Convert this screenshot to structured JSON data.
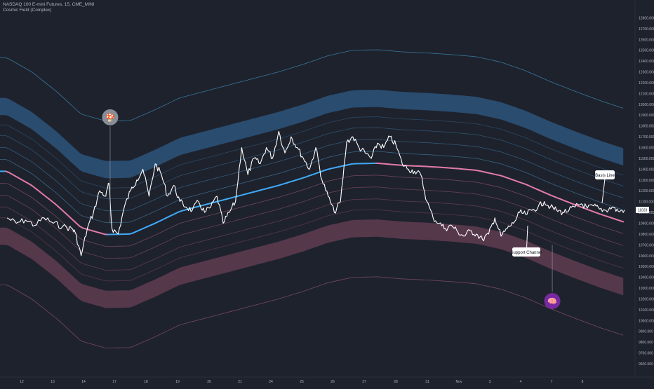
{
  "header": {
    "symbol": "NASDAQ 100 E-mini Futures, 15, CME_MINI",
    "indicator": "Cosmic Field (Complex)"
  },
  "callouts": {
    "basis": "Basis Line",
    "support": "Support Channel"
  },
  "colors": {
    "background": "#1e222d",
    "blue_band": "#2a4f73",
    "pink_band": "#5a3a4d",
    "basis_blue": "#3fa9f5",
    "basis_pink": "#e07aa8",
    "price": "#ffffff"
  },
  "chart_data": {
    "type": "line",
    "title": "",
    "xlabel": "",
    "ylabel": "",
    "y_axis_position": "right",
    "grid": false,
    "ylim": [
      9570,
      12900
    ],
    "y_ticks": [
      12800,
      12700,
      12600,
      12500,
      12400,
      12300,
      12200,
      12100,
      12000,
      11900,
      11800,
      11700,
      11600,
      11500,
      11400,
      11300,
      11200,
      11100,
      11000,
      10900,
      10800,
      10700,
      10600,
      10500,
      10400,
      10300,
      10200,
      10100,
      10000,
      9900,
      9800,
      9700,
      9600
    ],
    "y_tick_labels": [
      "12800.000",
      "12700.000",
      "12600.000",
      "12500.000",
      "12400.000",
      "12300.000",
      "12200.000",
      "12100.000",
      "12000.000",
      "11900.000",
      "11800.000",
      "11700.000",
      "11600.000",
      "11500.000",
      "11400.000",
      "11300.000",
      "11200.000",
      "11100.000",
      "11000.000",
      "10900.000",
      "10800.000",
      "10700.000",
      "10600.000",
      "10500.000",
      "10400.000",
      "10300.000",
      "10200.000",
      "10100.000",
      "10000.000",
      "9900.000",
      "9800.000",
      "9700.000",
      "9600.000"
    ],
    "x_ticks": [
      "12",
      "13",
      "14",
      "17",
      "18",
      "19",
      "20",
      "21",
      "24",
      "25",
      "26",
      "27",
      "28",
      "31",
      "Nov",
      "3",
      "4",
      "7",
      "8"
    ],
    "last_price_label": "11023",
    "series": [
      {
        "role": "basis",
        "x": [
          0,
          4,
          8,
          12,
          16,
          20,
          24,
          28,
          32,
          36,
          40,
          44,
          48,
          52,
          56,
          60,
          64,
          68,
          72,
          76,
          80,
          84,
          88,
          92,
          96,
          100
        ],
        "y": [
          11380,
          11250,
          11070,
          10860,
          10795,
          10800,
          10900,
          11010,
          11070,
          11130,
          11190,
          11250,
          11320,
          11400,
          11450,
          11455,
          11435,
          11425,
          11410,
          11390,
          11340,
          11260,
          11160,
          11070,
          10985,
          10910
        ]
      },
      {
        "role": "price",
        "x": [
          0,
          1.5,
          3,
          4.5,
          6,
          7.5,
          9,
          10.5,
          11,
          12,
          13,
          14,
          15,
          16,
          16.5,
          17,
          18,
          19,
          20,
          21,
          22,
          23,
          24,
          25,
          26,
          27,
          28,
          29,
          30,
          31,
          32,
          33,
          34,
          35,
          36,
          37,
          38,
          39,
          40,
          41,
          42,
          43,
          44,
          45,
          46,
          47,
          48,
          49,
          50,
          51,
          52,
          53,
          54,
          55,
          56,
          57,
          58,
          59,
          60,
          61,
          62,
          63,
          64,
          65,
          66,
          67,
          68,
          69,
          70,
          71,
          72,
          73,
          74,
          75,
          76,
          77,
          78,
          79,
          80,
          81,
          82,
          83,
          84,
          85,
          86,
          87,
          88,
          89,
          90,
          91,
          92,
          93,
          94,
          95,
          96,
          97,
          98,
          99,
          100
        ],
        "y": [
          10950,
          10900,
          10930,
          10880,
          10950,
          10900,
          10870,
          10850,
          10820,
          10600,
          10850,
          11000,
          11200,
          11150,
          11270,
          10850,
          10800,
          11050,
          11200,
          11300,
          11400,
          11150,
          11450,
          11350,
          11150,
          11250,
          11100,
          11050,
          11020,
          11100,
          11000,
          11050,
          11150,
          10900,
          11000,
          11100,
          11600,
          11350,
          11500,
          11450,
          11600,
          11500,
          11750,
          11550,
          11700,
          11600,
          11500,
          11400,
          11600,
          11300,
          11150,
          11000,
          11100,
          11650,
          11700,
          11600,
          11550,
          11500,
          11640,
          11600,
          11700,
          11620,
          11450,
          11400,
          11380,
          11350,
          11100,
          10950,
          10900,
          10850,
          10880,
          10820,
          10780,
          10830,
          10800,
          10750,
          10800,
          10950,
          10780,
          10850,
          10900,
          11000,
          10980,
          11020,
          11050,
          11100,
          11050,
          11020,
          11000,
          11020,
          11050,
          11080,
          11040,
          11060,
          11030,
          11020,
          11050,
          11010,
          11023
        ]
      }
    ],
    "markers": [
      {
        "kind": "emoji",
        "glyph": "🍄",
        "x": 16.7,
        "y": 11880
      },
      {
        "kind": "emoji",
        "glyph": "🧠",
        "x": 88.3,
        "y": 10180
      }
    ]
  }
}
